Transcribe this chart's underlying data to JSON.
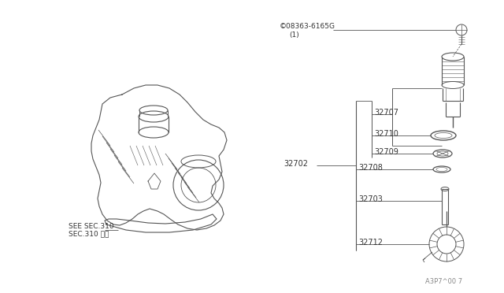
{
  "bg_color": "#ffffff",
  "line_color": "#555555",
  "text_color": "#333333",
  "watermark": "A3P7^00 7",
  "see_sec_text1": "SEE SEC.310",
  "see_sec_text2": "SEC.310 参照",
  "part_label_08363": "©08363-6165G",
  "part_label_08363b": "(1)",
  "labels": [
    "32707",
    "32710",
    "32709",
    "32702",
    "32708",
    "32703",
    "32712"
  ]
}
